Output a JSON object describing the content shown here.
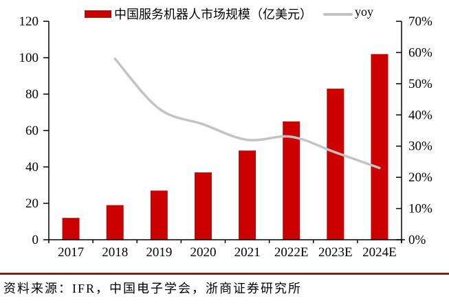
{
  "legend": {
    "bar_label": "中国服务机器人市场规模（亿美元）",
    "line_label": "yoy"
  },
  "footer": {
    "source_text": "资料来源：IFR，中国电子学会，浙商证券研究所"
  },
  "colors": {
    "bar": "#CC0000",
    "line": "#C3C3C3",
    "axis": "#000000",
    "rule": "#A01313",
    "text": "#000000"
  },
  "chart_data": {
    "type": "bar",
    "subtype": "bar-with-line",
    "title": "",
    "categories": [
      "2017",
      "2018",
      "2019",
      "2020",
      "2021",
      "2022E",
      "2023E",
      "2024E"
    ],
    "series": [
      {
        "name": "中国服务机器人市场规模（亿美元）",
        "kind": "bar",
        "axis": "left",
        "color": "#CC0000",
        "values": [
          12,
          19,
          27,
          37,
          49,
          65,
          83,
          102
        ]
      },
      {
        "name": "yoy",
        "kind": "line",
        "axis": "right",
        "color": "#C3C3C3",
        "values": [
          null,
          58,
          42,
          37,
          32,
          33,
          28,
          23
        ],
        "unit": "%"
      }
    ],
    "left_axis": {
      "min": 0,
      "max": 120,
      "tick_step": 20,
      "ticks": [
        "0",
        "20",
        "40",
        "60",
        "80",
        "100",
        "120"
      ]
    },
    "right_axis": {
      "min": 0,
      "max": 70,
      "tick_step": 10,
      "ticks": [
        "0%",
        "10%",
        "20%",
        "30%",
        "40%",
        "50%",
        "60%",
        "70%"
      ]
    },
    "grid": false,
    "legend_position": "top"
  }
}
